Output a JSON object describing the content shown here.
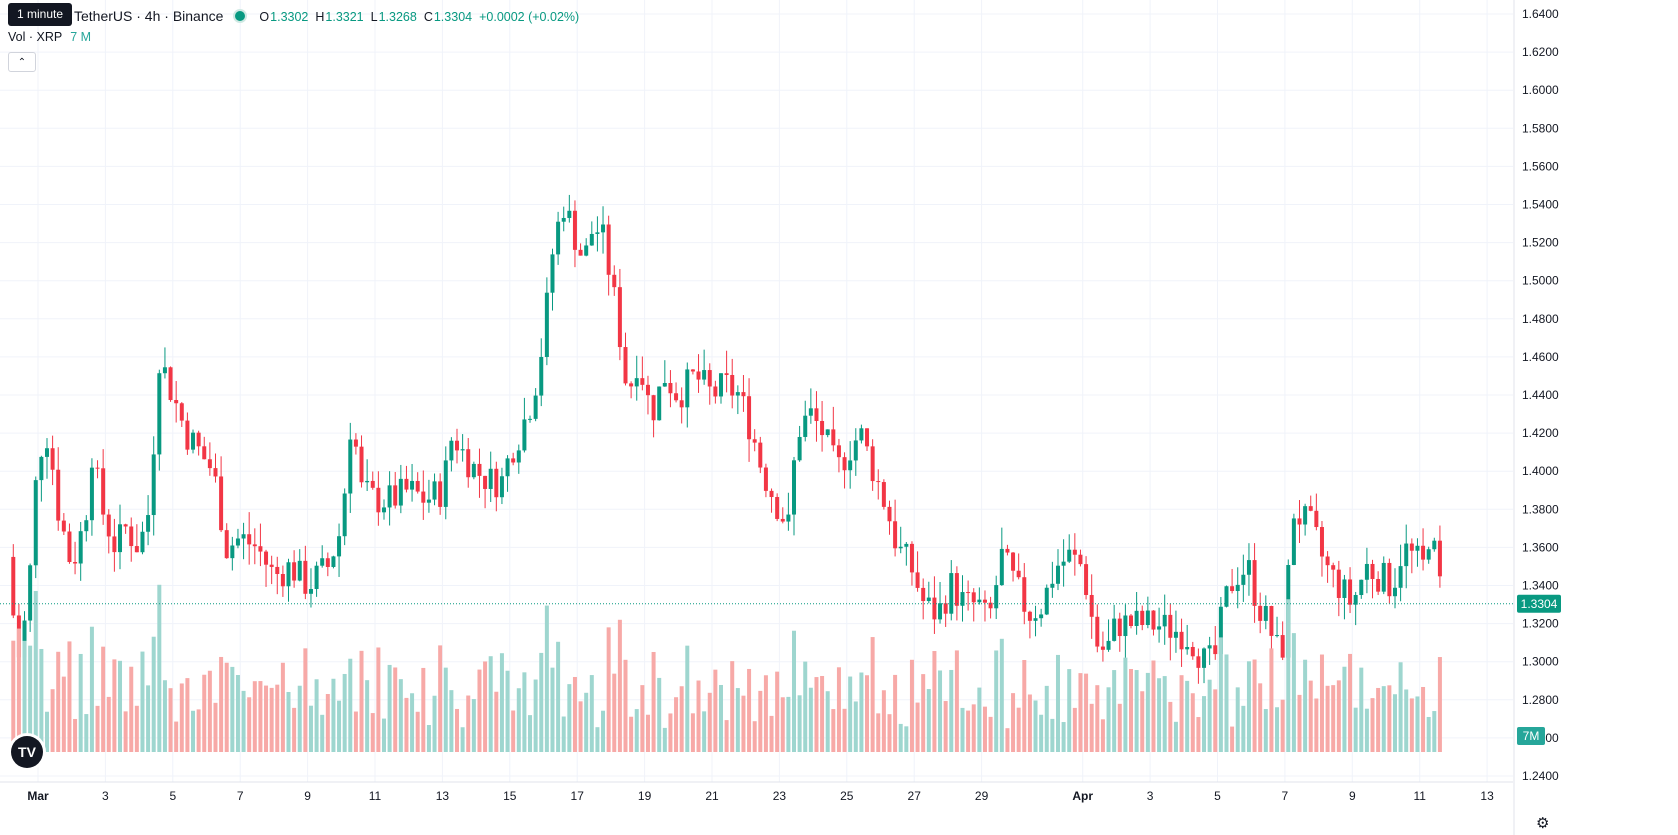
{
  "header": {
    "symbol": "TetherUS · 4h · Binance",
    "tooltip": "1 minute",
    "ohlc": [
      {
        "k": "O",
        "v": "1.3302"
      },
      {
        "k": "H",
        "v": "1.3321"
      },
      {
        "k": "L",
        "v": "1.3268"
      },
      {
        "k": "C",
        "v": "1.3304"
      },
      {
        "k": "",
        "v": "+0.0002 (+0.02%)"
      }
    ]
  },
  "volume_legend": {
    "label": "Vol · XRP",
    "value": "7 M"
  },
  "logo_text": "TV",
  "gear_icon": "⚙",
  "colors": {
    "up": "#089981",
    "down": "#f23645",
    "up_vol": "#9ed6cf",
    "down_vol": "#f7a9a7"
  },
  "chart_data": {
    "type": "candlestick",
    "price_axis": {
      "range": [
        1.24,
        1.64
      ],
      "ticks": [
        "1.6400",
        "1.6200",
        "1.6000",
        "1.5800",
        "1.5600",
        "1.5400",
        "1.5200",
        "1.5000",
        "1.4800",
        "1.4600",
        "1.4400",
        "1.4200",
        "1.4000",
        "1.3800",
        "1.3600",
        "1.3400",
        "1.3200",
        "1.3000",
        "1.2800",
        "1.2600",
        "1.2400"
      ],
      "last_price": "1.3304",
      "last_volume": "7M"
    },
    "time_axis": {
      "days_span": [
        0,
        44
      ],
      "labels": [
        {
          "day": 0,
          "text": "Mar"
        },
        {
          "day": 2,
          "text": "3"
        },
        {
          "day": 4,
          "text": "5"
        },
        {
          "day": 6,
          "text": "7"
        },
        {
          "day": 8,
          "text": "9"
        },
        {
          "day": 10,
          "text": "11"
        },
        {
          "day": 12,
          "text": "13"
        },
        {
          "day": 14,
          "text": "15"
        },
        {
          "day": 16,
          "text": "17"
        },
        {
          "day": 18,
          "text": "19"
        },
        {
          "day": 20,
          "text": "21"
        },
        {
          "day": 22,
          "text": "23"
        },
        {
          "day": 24,
          "text": "25"
        },
        {
          "day": 26,
          "text": "27"
        },
        {
          "day": 28,
          "text": "29"
        },
        {
          "day": 31,
          "text": "Apr"
        },
        {
          "day": 33,
          "text": "3"
        },
        {
          "day": 35,
          "text": "5"
        },
        {
          "day": 37,
          "text": "7"
        },
        {
          "day": 39,
          "text": "9"
        },
        {
          "day": 41,
          "text": "11"
        },
        {
          "day": 43,
          "text": "13"
        }
      ]
    },
    "close_path": [
      [
        -0.9,
        1.355
      ],
      [
        -0.6,
        1.3
      ],
      [
        -0.3,
        1.33
      ],
      [
        0.0,
        1.41
      ],
      [
        0.3,
        1.42
      ],
      [
        0.6,
        1.38
      ],
      [
        1.0,
        1.35
      ],
      [
        1.4,
        1.375
      ],
      [
        1.6,
        1.41
      ],
      [
        1.9,
        1.38
      ],
      [
        2.3,
        1.36
      ],
      [
        2.6,
        1.37
      ],
      [
        3.0,
        1.36
      ],
      [
        3.3,
        1.38
      ],
      [
        3.6,
        1.46
      ],
      [
        4.0,
        1.44
      ],
      [
        4.4,
        1.42
      ],
      [
        4.8,
        1.41
      ],
      [
        5.2,
        1.4
      ],
      [
        5.6,
        1.36
      ],
      [
        6.0,
        1.365
      ],
      [
        6.5,
        1.36
      ],
      [
        7.0,
        1.345
      ],
      [
        7.5,
        1.35
      ],
      [
        8.0,
        1.34
      ],
      [
        8.6,
        1.35
      ],
      [
        9.0,
        1.37
      ],
      [
        9.3,
        1.43
      ],
      [
        9.6,
        1.39
      ],
      [
        10.0,
        1.385
      ],
      [
        10.5,
        1.385
      ],
      [
        11.0,
        1.39
      ],
      [
        11.5,
        1.385
      ],
      [
        12.0,
        1.39
      ],
      [
        12.3,
        1.42
      ],
      [
        12.6,
        1.41
      ],
      [
        13.0,
        1.4
      ],
      [
        13.4,
        1.395
      ],
      [
        13.8,
        1.395
      ],
      [
        14.0,
        1.41
      ],
      [
        14.3,
        1.42
      ],
      [
        14.7,
        1.44
      ],
      [
        15.0,
        1.47
      ],
      [
        15.3,
        1.52
      ],
      [
        15.6,
        1.54
      ],
      [
        15.8,
        1.53
      ],
      [
        16.2,
        1.51
      ],
      [
        16.5,
        1.53
      ],
      [
        16.8,
        1.52
      ],
      [
        17.2,
        1.48
      ],
      [
        17.5,
        1.44
      ],
      [
        17.8,
        1.46
      ],
      [
        18.2,
        1.43
      ],
      [
        18.6,
        1.45
      ],
      [
        19.0,
        1.44
      ],
      [
        19.5,
        1.45
      ],
      [
        20.0,
        1.44
      ],
      [
        20.4,
        1.445
      ],
      [
        20.8,
        1.44
      ],
      [
        21.2,
        1.42
      ],
      [
        21.5,
        1.4
      ],
      [
        22.0,
        1.38
      ],
      [
        22.3,
        1.37
      ],
      [
        22.5,
        1.42
      ],
      [
        22.9,
        1.43
      ],
      [
        23.3,
        1.42
      ],
      [
        23.7,
        1.4
      ],
      [
        24.0,
        1.41
      ],
      [
        24.4,
        1.42
      ],
      [
        24.8,
        1.4
      ],
      [
        25.2,
        1.38
      ],
      [
        25.5,
        1.36
      ],
      [
        25.9,
        1.35
      ],
      [
        26.3,
        1.33
      ],
      [
        26.7,
        1.325
      ],
      [
        27.1,
        1.34
      ],
      [
        27.5,
        1.33
      ],
      [
        27.9,
        1.33
      ],
      [
        28.2,
        1.32
      ],
      [
        28.6,
        1.355
      ],
      [
        29.0,
        1.34
      ],
      [
        29.4,
        1.325
      ],
      [
        29.8,
        1.33
      ],
      [
        30.2,
        1.35
      ],
      [
        30.6,
        1.355
      ],
      [
        31.0,
        1.35
      ],
      [
        31.4,
        1.31
      ],
      [
        31.7,
        1.305
      ],
      [
        32.0,
        1.32
      ],
      [
        32.5,
        1.32
      ],
      [
        33.0,
        1.32
      ],
      [
        33.5,
        1.318
      ],
      [
        34.0,
        1.315
      ],
      [
        34.3,
        1.31
      ],
      [
        34.6,
        1.3
      ],
      [
        34.9,
        1.3
      ],
      [
        35.2,
        1.33
      ],
      [
        35.5,
        1.345
      ],
      [
        35.9,
        1.35
      ],
      [
        36.2,
        1.33
      ],
      [
        36.5,
        1.32
      ],
      [
        36.8,
        1.305
      ],
      [
        37.0,
        1.31
      ],
      [
        37.2,
        1.38
      ],
      [
        37.5,
        1.375
      ],
      [
        37.8,
        1.37
      ],
      [
        38.2,
        1.35
      ],
      [
        38.6,
        1.34
      ],
      [
        39.0,
        1.33
      ],
      [
        39.4,
        1.35
      ],
      [
        39.8,
        1.345
      ],
      [
        40.2,
        1.34
      ],
      [
        40.5,
        1.36
      ],
      [
        40.8,
        1.355
      ],
      [
        41.1,
        1.35
      ],
      [
        41.3,
        1.37
      ],
      [
        41.5,
        1.35
      ],
      [
        41.7,
        1.33
      ]
    ]
  }
}
